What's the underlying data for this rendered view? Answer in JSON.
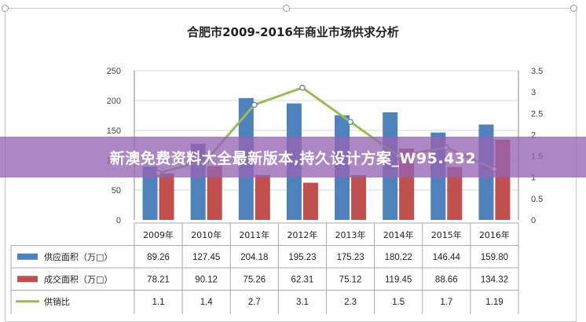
{
  "title": "合肥市2009-2016年商业市场供求分析",
  "watermark": "新澳免费资料大全最新版本,持久设计方案_W95.432",
  "colors": {
    "supply": "#4f81bd",
    "deal": "#c0504d",
    "ratio": "#9bbb59",
    "grid": "#d9d9d9",
    "axis": "#888888"
  },
  "chart_data": {
    "type": "bar",
    "title": "合肥市2009-2016年商业市场供求分析",
    "categories": [
      "2009年",
      "2010年",
      "2011年",
      "2012年",
      "2013年",
      "2014年",
      "2015年",
      "2016年"
    ],
    "series": [
      {
        "name": "供应面积（万□）",
        "type": "bar",
        "axis": "left",
        "values": [
          89.26,
          127.45,
          204.18,
          195.23,
          175.23,
          180.22,
          146.44,
          159.8
        ],
        "display": [
          "89.26",
          "127.45",
          "204.18",
          "195.23",
          "175.23",
          "180.22",
          "146.44",
          "159.80"
        ]
      },
      {
        "name": "成交面积（万□）",
        "type": "bar",
        "axis": "left",
        "values": [
          78.21,
          90.12,
          75.26,
          62.31,
          75.12,
          119.45,
          88.66,
          134.32
        ],
        "display": [
          "78.21",
          "90.12",
          "75.26",
          "62.31",
          "75.12",
          "119.45",
          "88.66",
          "134.32"
        ]
      },
      {
        "name": "供销比",
        "type": "line",
        "axis": "right",
        "values": [
          1.1,
          1.4,
          2.7,
          3.1,
          2.3,
          1.5,
          1.7,
          1.19
        ],
        "display": [
          "1.1",
          "1.4",
          "2.7",
          "3.1",
          "2.3",
          "1.5",
          "1.7",
          "1.19"
        ]
      }
    ],
    "y_left": {
      "min": 0,
      "max": 250,
      "ticks": [
        "0",
        "50",
        "100",
        "150",
        "200",
        "250"
      ]
    },
    "y_right": {
      "min": 0,
      "max": 3.5,
      "ticks": [
        "0",
        "0.5",
        "1",
        "1.5",
        "2",
        "2.5",
        "3",
        "3.5"
      ]
    },
    "legend": "data-table"
  }
}
